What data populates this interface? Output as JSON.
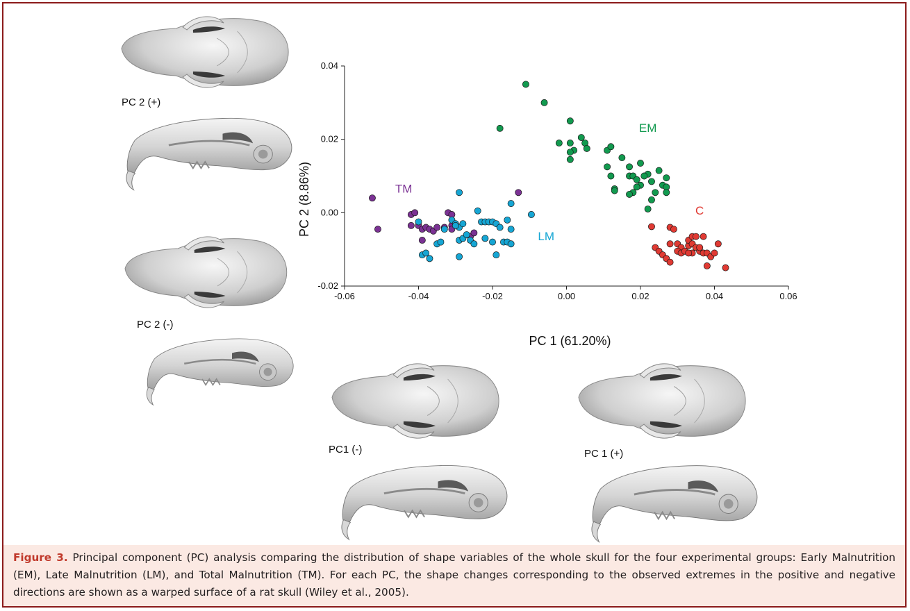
{
  "skull_labels": {
    "pc2_pos": "PC 2 (+)",
    "pc2_neg": "PC 2 (-)",
    "pc1_neg": "PC1 (-)",
    "pc1_pos": "PC 1 (+)"
  },
  "chart_data": {
    "type": "scatter",
    "xlabel": "PC 1 (61.20%)",
    "ylabel": "PC 2 (8.86%)",
    "xlim": [
      -0.06,
      0.06
    ],
    "ylim": [
      -0.02,
      0.04
    ],
    "xticks": [
      "-0.06",
      "-0.04",
      "-0.02",
      "0.00",
      "0.02",
      "0.04",
      "0.06"
    ],
    "yticks": [
      "-0.02",
      "0.00",
      "0.02",
      "0.04"
    ],
    "grid": false,
    "series": [
      {
        "name": "EM",
        "color": "#129a4f",
        "points": [
          [
            -0.011,
            0.035
          ],
          [
            -0.006,
            0.03
          ],
          [
            -0.018,
            0.023
          ],
          [
            0.001,
            0.025
          ],
          [
            -0.002,
            0.019
          ],
          [
            0.001,
            0.019
          ],
          [
            0.002,
            0.017
          ],
          [
            0.001,
            0.0165
          ],
          [
            0.001,
            0.0145
          ],
          [
            0.004,
            0.0205
          ],
          [
            0.005,
            0.019
          ],
          [
            0.0055,
            0.0175
          ],
          [
            0.011,
            0.017
          ],
          [
            0.012,
            0.018
          ],
          [
            0.015,
            0.015
          ],
          [
            0.017,
            0.0125
          ],
          [
            0.02,
            0.0135
          ],
          [
            0.022,
            0.0105
          ],
          [
            0.025,
            0.0115
          ],
          [
            0.027,
            0.0095
          ],
          [
            0.011,
            0.0125
          ],
          [
            0.012,
            0.01
          ],
          [
            0.013,
            0.0065
          ],
          [
            0.013,
            0.006
          ],
          [
            0.017,
            0.01
          ],
          [
            0.018,
            0.01
          ],
          [
            0.019,
            0.009
          ],
          [
            0.02,
            0.0075
          ],
          [
            0.019,
            0.007
          ],
          [
            0.018,
            0.0055
          ],
          [
            0.017,
            0.005
          ],
          [
            0.021,
            0.01
          ],
          [
            0.023,
            0.0085
          ],
          [
            0.026,
            0.0075
          ],
          [
            0.024,
            0.0055
          ],
          [
            0.023,
            0.0035
          ],
          [
            0.022,
            0.001
          ],
          [
            0.027,
            0.007
          ],
          [
            0.027,
            0.0055
          ]
        ]
      },
      {
        "name": "C",
        "color": "#e03a33",
        "points": [
          [
            0.023,
            -0.0038
          ],
          [
            0.028,
            -0.004
          ],
          [
            0.029,
            -0.0045
          ],
          [
            0.024,
            -0.0095
          ],
          [
            0.025,
            -0.0105
          ],
          [
            0.026,
            -0.0115
          ],
          [
            0.027,
            -0.0125
          ],
          [
            0.028,
            -0.0135
          ],
          [
            0.028,
            -0.0085
          ],
          [
            0.03,
            -0.0085
          ],
          [
            0.031,
            -0.0095
          ],
          [
            0.03,
            -0.0105
          ],
          [
            0.031,
            -0.011
          ],
          [
            0.032,
            -0.0105
          ],
          [
            0.033,
            -0.009
          ],
          [
            0.033,
            -0.0075
          ],
          [
            0.034,
            -0.0065
          ],
          [
            0.035,
            -0.0065
          ],
          [
            0.034,
            -0.0085
          ],
          [
            0.035,
            -0.0095
          ],
          [
            0.034,
            -0.011
          ],
          [
            0.036,
            -0.0105
          ],
          [
            0.037,
            -0.0065
          ],
          [
            0.037,
            -0.011
          ],
          [
            0.038,
            -0.011
          ],
          [
            0.039,
            -0.012
          ],
          [
            0.038,
            -0.0145
          ],
          [
            0.04,
            -0.011
          ],
          [
            0.041,
            -0.0085
          ],
          [
            0.043,
            -0.015
          ],
          [
            0.036,
            -0.0095
          ],
          [
            0.033,
            -0.011
          ]
        ]
      },
      {
        "name": "TM",
        "color": "#7b3294",
        "points": [
          [
            -0.0525,
            0.004
          ],
          [
            -0.051,
            -0.0045
          ],
          [
            -0.042,
            -0.0005
          ],
          [
            -0.041,
            0.0
          ],
          [
            -0.042,
            -0.0035
          ],
          [
            -0.04,
            -0.0035
          ],
          [
            -0.039,
            -0.0045
          ],
          [
            -0.038,
            -0.004
          ],
          [
            -0.037,
            -0.0045
          ],
          [
            -0.036,
            -0.005
          ],
          [
            -0.035,
            -0.004
          ],
          [
            -0.033,
            -0.004
          ],
          [
            -0.031,
            -0.0035
          ],
          [
            -0.032,
            0.0
          ],
          [
            -0.031,
            -0.0005
          ],
          [
            -0.031,
            -0.0045
          ],
          [
            -0.026,
            -0.0065
          ],
          [
            -0.025,
            -0.0055
          ],
          [
            -0.013,
            0.0055
          ],
          [
            -0.039,
            -0.0075
          ]
        ]
      },
      {
        "name": "LM",
        "color": "#16a6d4",
        "points": [
          [
            -0.029,
            0.0055
          ],
          [
            -0.04,
            -0.0025
          ],
          [
            -0.039,
            -0.0115
          ],
          [
            -0.038,
            -0.011
          ],
          [
            -0.037,
            -0.0125
          ],
          [
            -0.035,
            -0.0085
          ],
          [
            -0.034,
            -0.008
          ],
          [
            -0.033,
            -0.0045
          ],
          [
            -0.031,
            -0.002
          ],
          [
            -0.03,
            -0.003
          ],
          [
            -0.029,
            -0.004
          ],
          [
            -0.03,
            -0.0035
          ],
          [
            -0.028,
            -0.003
          ],
          [
            -0.029,
            -0.0075
          ],
          [
            -0.028,
            -0.007
          ],
          [
            -0.027,
            -0.006
          ],
          [
            -0.026,
            -0.0075
          ],
          [
            -0.029,
            -0.012
          ],
          [
            -0.025,
            -0.0085
          ],
          [
            -0.022,
            -0.007
          ],
          [
            -0.023,
            -0.0025
          ],
          [
            -0.022,
            -0.0025
          ],
          [
            -0.021,
            -0.0025
          ],
          [
            -0.02,
            -0.0025
          ],
          [
            -0.019,
            -0.003
          ],
          [
            -0.024,
            0.0005
          ],
          [
            -0.018,
            -0.004
          ],
          [
            -0.019,
            -0.0115
          ],
          [
            -0.017,
            -0.008
          ],
          [
            -0.016,
            -0.008
          ],
          [
            -0.015,
            -0.0045
          ],
          [
            -0.015,
            -0.0085
          ],
          [
            -0.016,
            -0.002
          ],
          [
            -0.015,
            0.0025
          ],
          [
            -0.0095,
            -0.0005
          ],
          [
            -0.02,
            -0.008
          ]
        ]
      }
    ],
    "annotations": [
      {
        "text": "EM",
        "x": 0.022,
        "y": 0.022,
        "color": "#129a4f"
      },
      {
        "text": "C",
        "x": 0.036,
        "y": -0.0005,
        "color": "#e03a33"
      },
      {
        "text": "TM",
        "x": -0.044,
        "y": 0.0055,
        "color": "#7b3294"
      },
      {
        "text": "LM",
        "x": -0.0055,
        "y": -0.0075,
        "color": "#16a6d4"
      }
    ]
  },
  "caption": {
    "label": "Figure 3.",
    "text": "Principal component (PC) analysis comparing the distribution of shape variables of the whole skull for the four experimental groups: Early Malnutrition (EM), Late Malnutrition (LM), and Total Malnutrition (TM). For each PC, the shape changes corresponding to the observed extremes in the positive and negative directions are shown as a warped surface of a rat skull (Wiley et al., 2005)."
  }
}
